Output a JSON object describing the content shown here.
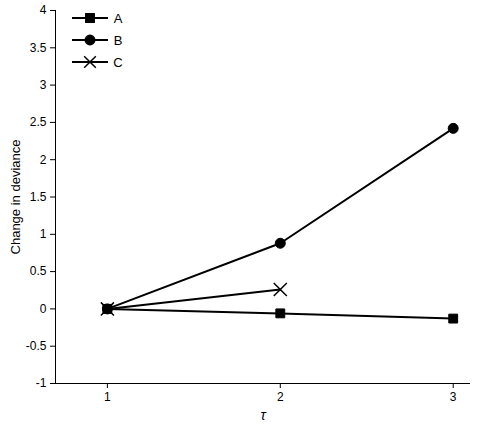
{
  "chart_data": {
    "type": "line",
    "x_label": "τ",
    "y_label": "Change in deviance",
    "x": [
      1,
      2,
      3
    ],
    "series": [
      {
        "name": "A",
        "color": "#000000",
        "marker": "square",
        "values": [
          0,
          -0.06,
          -0.13
        ]
      },
      {
        "name": "B",
        "color": "#000000",
        "marker": "circle",
        "values": [
          0,
          0.88,
          2.42
        ]
      },
      {
        "name": "C",
        "color": "#000000",
        "marker": "times",
        "values": [
          0,
          0.26,
          null
        ]
      }
    ],
    "xlim": [
      0.7,
      3.1
    ],
    "xticks": [
      1,
      2,
      3
    ],
    "ylim": [
      -1,
      4
    ],
    "yticks": [
      -1,
      -0.5,
      0,
      0.5,
      1,
      1.5,
      2,
      2.5,
      3,
      3.5,
      4
    ],
    "legend": "top-left",
    "grid": false
  }
}
